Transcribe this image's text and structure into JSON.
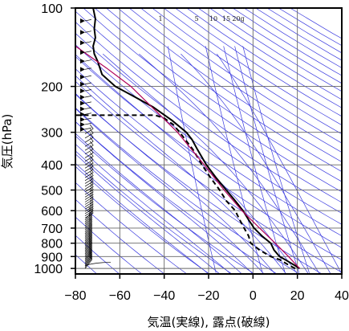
{
  "chart_data": {
    "type": "line",
    "subtype": "emagram",
    "xlabel": "気温(実線), 露点(破線)",
    "ylabel": "気圧(hPa)",
    "xlim": [
      -80,
      40
    ],
    "ylim": [
      1050,
      100
    ],
    "y_scale": "log",
    "x_ticks": [
      -80,
      -60,
      -40,
      -20,
      0,
      20,
      40
    ],
    "y_ticks": [
      100,
      200,
      300,
      400,
      500,
      600,
      700,
      800,
      900,
      1000
    ],
    "mixing_ratio_labels": [
      "1",
      "5",
      "10",
      "15",
      "20g"
    ],
    "grid": true,
    "colors": {
      "temperature": "#000000",
      "dewpoint": "#000000",
      "parcel": "#b0005a",
      "adiabats": "#3a3adf",
      "grid": "#666666"
    },
    "series": [
      {
        "name": "temperature",
        "style": "solid",
        "points": [
          [
            21.0,
            1000
          ],
          [
            19.0,
            975
          ],
          [
            14.5,
            925
          ],
          [
            12.0,
            900
          ],
          [
            9.5,
            850
          ],
          [
            8.0,
            800
          ],
          [
            4.0,
            750
          ],
          [
            0.5,
            700
          ],
          [
            -2.0,
            650
          ],
          [
            -4.5,
            600
          ],
          [
            -8.0,
            550
          ],
          [
            -12.0,
            500
          ],
          [
            -16.5,
            450
          ],
          [
            -21.0,
            400
          ],
          [
            -25.0,
            350
          ],
          [
            -27.5,
            320
          ],
          [
            -30.0,
            300
          ],
          [
            -36.5,
            270
          ],
          [
            -45.0,
            240
          ],
          [
            -53.0,
            220
          ],
          [
            -62.0,
            200
          ],
          [
            -68.0,
            180
          ],
          [
            -70.0,
            160
          ],
          [
            -71.5,
            150
          ],
          [
            -72.0,
            140
          ],
          [
            -71.0,
            130
          ],
          [
            -71.5,
            120
          ],
          [
            -71.0,
            110
          ],
          [
            -72.0,
            100
          ]
        ]
      },
      {
        "name": "dewpoint",
        "style": "dashed",
        "points": [
          [
            19.0,
            1000
          ],
          [
            16.5,
            975
          ],
          [
            12.0,
            925
          ],
          [
            8.0,
            900
          ],
          [
            3.0,
            850
          ],
          [
            -1.0,
            800
          ],
          [
            -2.0,
            750
          ],
          [
            -4.0,
            700
          ],
          [
            -6.0,
            650
          ],
          [
            -8.0,
            600
          ],
          [
            -12.0,
            550
          ],
          [
            -15.0,
            500
          ],
          [
            -19.0,
            450
          ],
          [
            -23.0,
            400
          ],
          [
            -27.0,
            350
          ],
          [
            -33.0,
            300
          ],
          [
            -36.0,
            280
          ],
          [
            -40.0,
            265
          ],
          [
            -44.0,
            258
          ],
          [
            -80.0,
            258
          ]
        ]
      },
      {
        "name": "parcel",
        "style": "solid",
        "points": [
          [
            21.0,
            1000
          ],
          [
            16.0,
            900
          ],
          [
            10.0,
            800
          ],
          [
            3.0,
            700
          ],
          [
            -5.0,
            600
          ],
          [
            -13.0,
            500
          ],
          [
            -22.0,
            400
          ],
          [
            -34.0,
            300
          ],
          [
            -55.0,
            200
          ],
          [
            -66.0,
            170
          ],
          [
            -80.0,
            140
          ]
        ]
      }
    ],
    "wind_profile": "barbs along the left edge from 1000 hPa to 100 hPa"
  }
}
